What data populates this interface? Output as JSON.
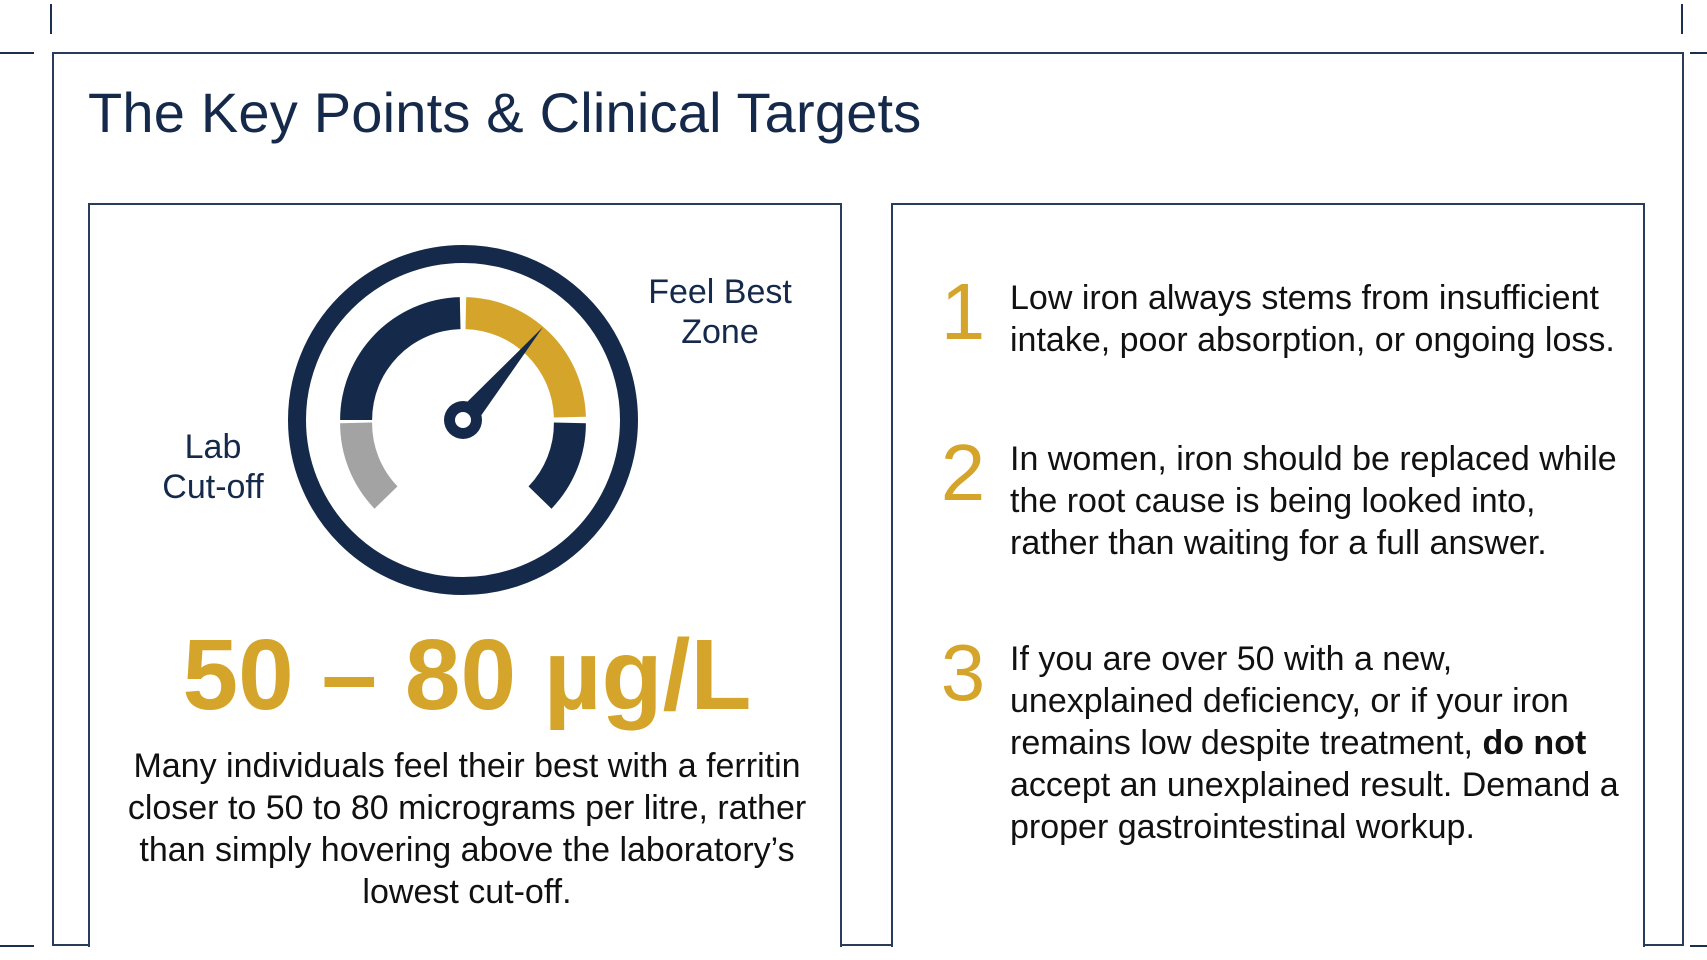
{
  "title": "The Key Points & Clinical Targets",
  "gauge": {
    "lab_label_line1": "Lab",
    "lab_label_line2": "Cut-off",
    "feel_label_line1": "Feel Best",
    "feel_label_line2": "Zone"
  },
  "target_range": "50 – 80 µg/L",
  "target_description": "Many individuals feel their best with a ferritin closer to 50 to 80 micrograms per litre, rather than simply hovering above the laboratory’s lowest cut-off.",
  "key_points": [
    {
      "number": "1",
      "text": "Low iron always stems from insufficient intake, poor absorption, or ongoing loss."
    },
    {
      "number": "2",
      "text": "In women, iron should be replaced while the root cause is being looked into, rather than waiting for a full answer."
    },
    {
      "number": "3",
      "text_before": "If you are over 50 with a new, unexplained deficiency, or if your iron remains low despite treatment, ",
      "text_bold": "do not",
      "text_after": " accept an unexplained result. Demand a proper gastrointestinal workup."
    }
  ],
  "colors": {
    "navy": "#15294a",
    "gold": "#d4a52a",
    "gray": "#a3a3a3",
    "border": "#2a3c5c"
  }
}
